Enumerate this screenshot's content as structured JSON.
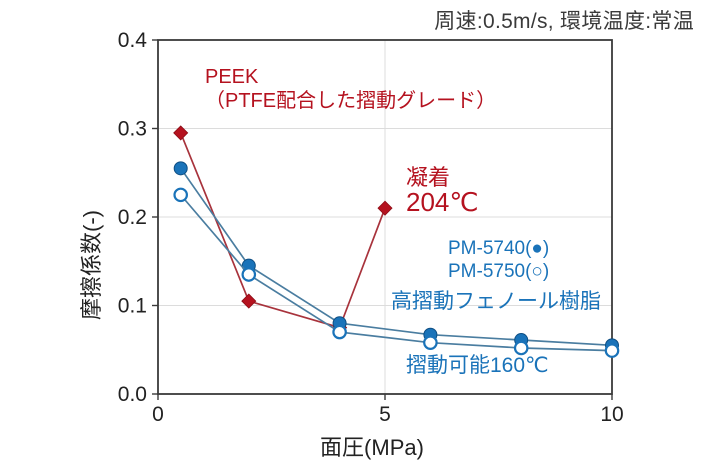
{
  "chart_data": {
    "type": "line",
    "title": "",
    "conditions": "周速:0.5m/s, 環境温度:常温",
    "xlabel": "面圧(MPa)",
    "ylabel": "摩擦係数(-)",
    "xlim": [
      0,
      10
    ],
    "ylim": [
      0,
      0.4
    ],
    "grid": {
      "horizontal": [
        0.1,
        0.2,
        0.3
      ],
      "vertical": [
        5
      ]
    },
    "x_ticks": [
      {
        "label": "0",
        "value": 0
      },
      {
        "label": "5",
        "value": 5
      },
      {
        "label": "10",
        "value": 10
      }
    ],
    "y_ticks": [
      {
        "label": "0.0",
        "value": 0
      },
      {
        "label": "0.1",
        "value": 0.1
      },
      {
        "label": "0.2",
        "value": 0.2
      },
      {
        "label": "0.3",
        "value": 0.3
      },
      {
        "label": "0.4",
        "value": 0.4
      }
    ],
    "series": [
      {
        "name": "PEEK（PTFE配合した摺動グレード）",
        "marker": "diamond",
        "color": "#b5121f",
        "line_color": "#a8333c",
        "x": [
          0.5,
          2,
          4,
          5
        ],
        "y": [
          0.295,
          0.105,
          0.075,
          0.21
        ]
      },
      {
        "name": "PM-5740",
        "marker": "circle-filled",
        "color": "#1a73b9",
        "line_color": "#4a7da0",
        "x": [
          0.5,
          2,
          4,
          6,
          8,
          10
        ],
        "y": [
          0.255,
          0.145,
          0.08,
          0.067,
          0.061,
          0.055
        ]
      },
      {
        "name": "PM-5750",
        "marker": "circle-open",
        "color": "#1a73b9",
        "line_color": "#4a7da0",
        "x": [
          0.5,
          2,
          4,
          6,
          8,
          10
        ],
        "y": [
          0.225,
          0.135,
          0.07,
          0.058,
          0.052,
          0.049
        ]
      }
    ],
    "annotations": {
      "peek_line1": "PEEK",
      "peek_line2": "（PTFE配合した摺動グレード）",
      "adhesion_line1": "凝着",
      "adhesion_line2": "204℃",
      "legend_filled": "PM-5740(●)",
      "legend_open": "PM-5750(○)",
      "phenolic": "高摺動フェノール樹脂",
      "slidable": "摺動可能160℃"
    },
    "legend_position": "right-middle",
    "colors": {
      "red": "#b5121f",
      "blue": "#1a73b9",
      "blue_line": "#4a7da0",
      "grid": "#dcdcdc",
      "frame": "#3a3a3a",
      "text": "#3a3a3a"
    }
  }
}
